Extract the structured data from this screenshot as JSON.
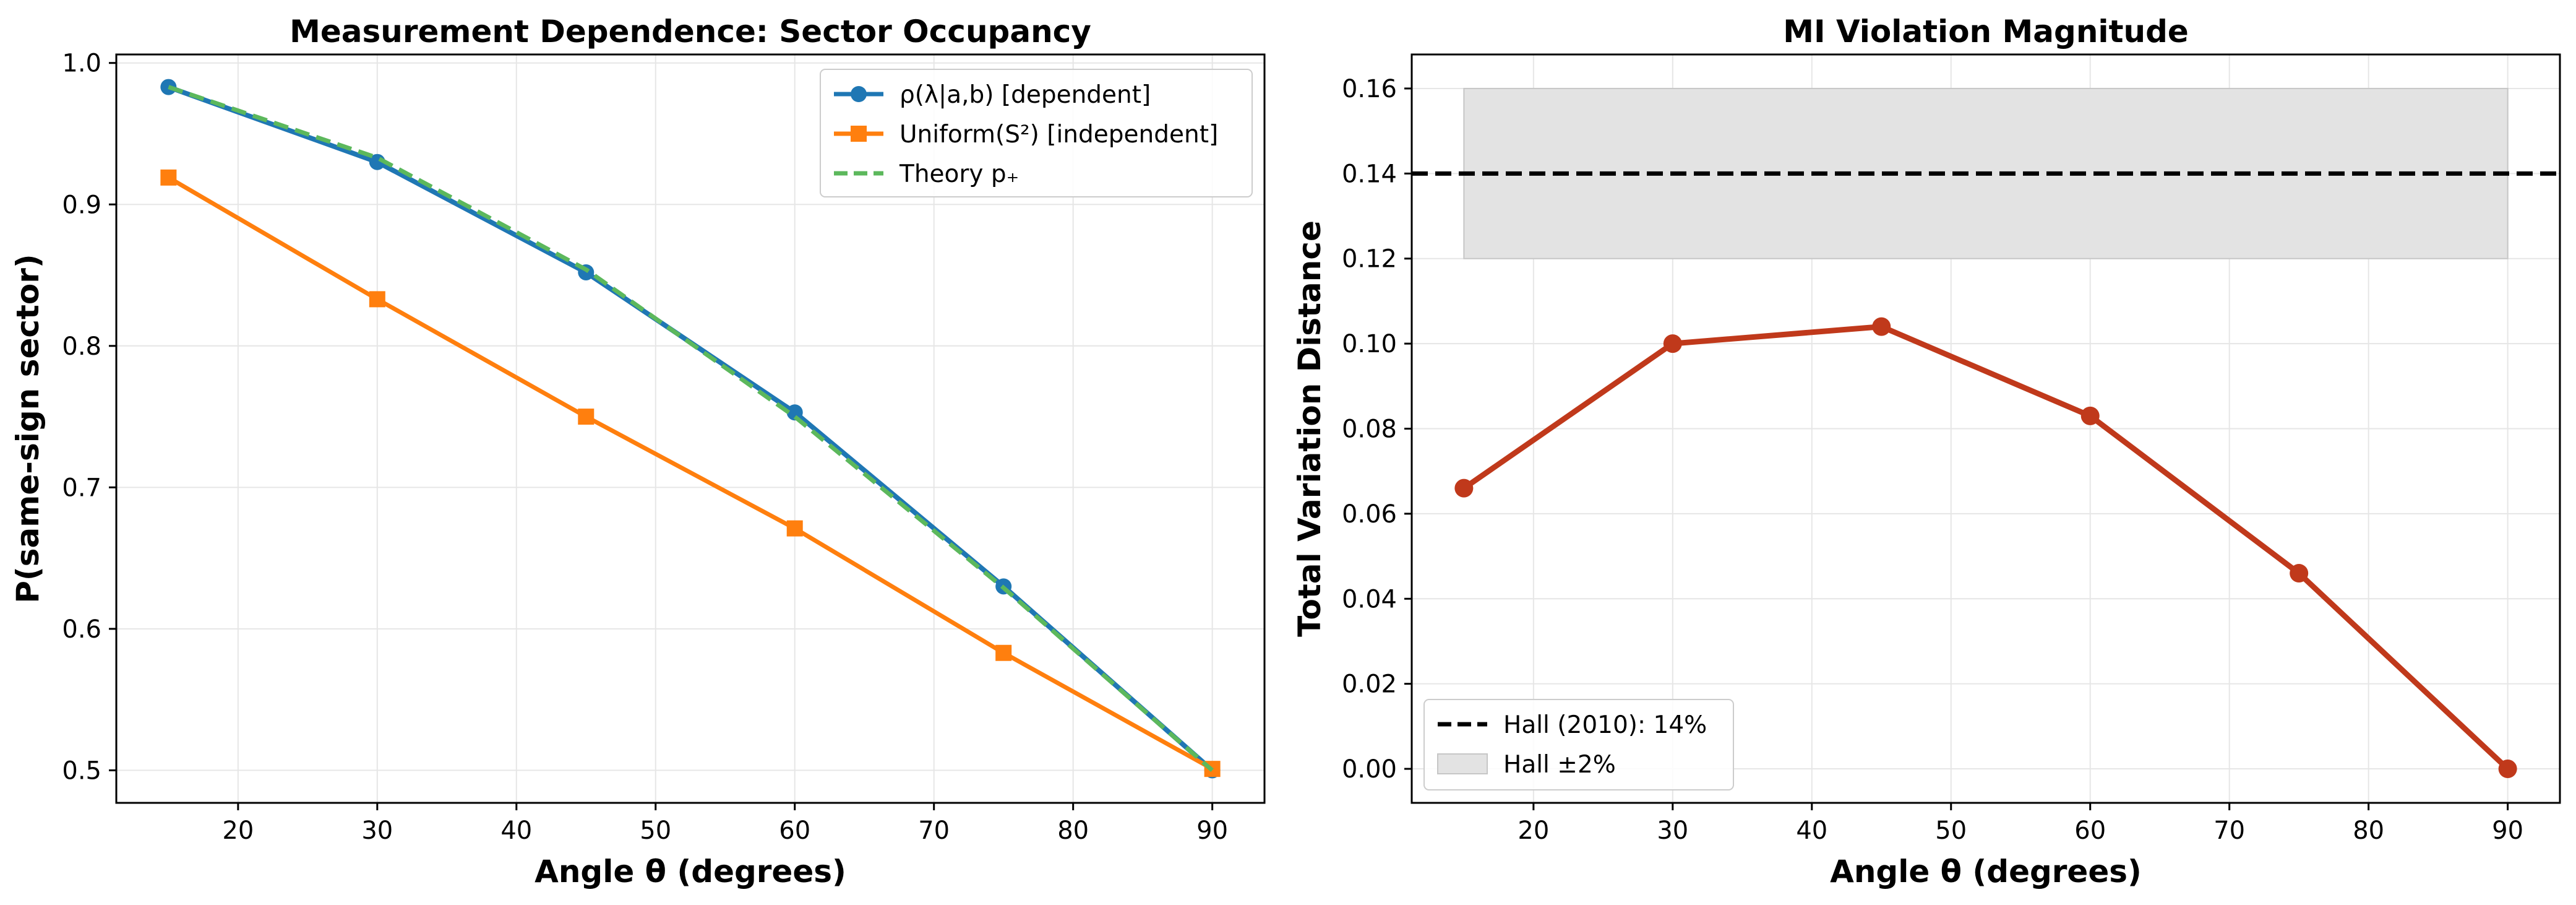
{
  "chart_data": [
    {
      "type": "line",
      "title": "Measurement Dependence: Sector Occupancy",
      "xlabel": "Angle θ (degrees)",
      "ylabel": "P(same-sign sector)",
      "xlim": [
        11.25,
        93.75
      ],
      "ylim": [
        0.477,
        1.006
      ],
      "xticks": [
        20,
        30,
        40,
        50,
        60,
        70,
        80,
        90
      ],
      "yticks": [
        0.5,
        0.6,
        0.7,
        0.8,
        0.9,
        1.0
      ],
      "ytick_labels": [
        "0.5",
        "0.6",
        "0.7",
        "0.8",
        "0.9",
        "1.0"
      ],
      "grid": true,
      "legend_position": "upper-right",
      "x": [
        15,
        30,
        45,
        60,
        75,
        90
      ],
      "series": [
        {
          "name": "ρ(λ|a,b) [dependent]",
          "color": "#1f77b4",
          "marker": "circle",
          "style": "solid",
          "values": [
            0.983,
            0.93,
            0.852,
            0.753,
            0.63,
            0.5
          ]
        },
        {
          "name": "Uniform(S²) [independent]",
          "color": "#ff7f0e",
          "marker": "square",
          "style": "solid",
          "values": [
            0.919,
            0.833,
            0.75,
            0.671,
            0.583,
            0.501
          ]
        },
        {
          "name": "Theory p₊",
          "color": "#5cb85c",
          "marker": "none",
          "style": "dashed",
          "values": [
            0.983,
            0.933,
            0.854,
            0.75,
            0.629,
            0.5
          ]
        }
      ]
    },
    {
      "type": "line",
      "title": "MI Violation Magnitude",
      "xlabel": "Angle θ (degrees)",
      "ylabel": "Total Variation Distance",
      "xlim": [
        11.25,
        93.75
      ],
      "ylim": [
        -0.008,
        0.168
      ],
      "xticks": [
        20,
        30,
        40,
        50,
        60,
        70,
        80,
        90
      ],
      "yticks": [
        0.0,
        0.02,
        0.04,
        0.06,
        0.08,
        0.1,
        0.12,
        0.14,
        0.16
      ],
      "ytick_labels": [
        "0.00",
        "0.02",
        "0.04",
        "0.06",
        "0.08",
        "0.10",
        "0.12",
        "0.14",
        "0.16"
      ],
      "grid": true,
      "legend_position": "lower-left",
      "x": [
        15,
        30,
        45,
        60,
        75,
        90
      ],
      "series": [
        {
          "color": "#c0391b",
          "marker": "circle",
          "style": "solid",
          "values": [
            0.066,
            0.1,
            0.104,
            0.083,
            0.046,
            0.0
          ]
        }
      ],
      "reference_line": {
        "name": "Hall (2010): 14%",
        "y": 0.14,
        "color": "#000000",
        "style": "dashed"
      },
      "band": {
        "name": "Hall ±2%",
        "y0": 0.12,
        "y1": 0.16,
        "x0": 15,
        "x1": 90,
        "color": "#c8c8c8"
      }
    }
  ]
}
